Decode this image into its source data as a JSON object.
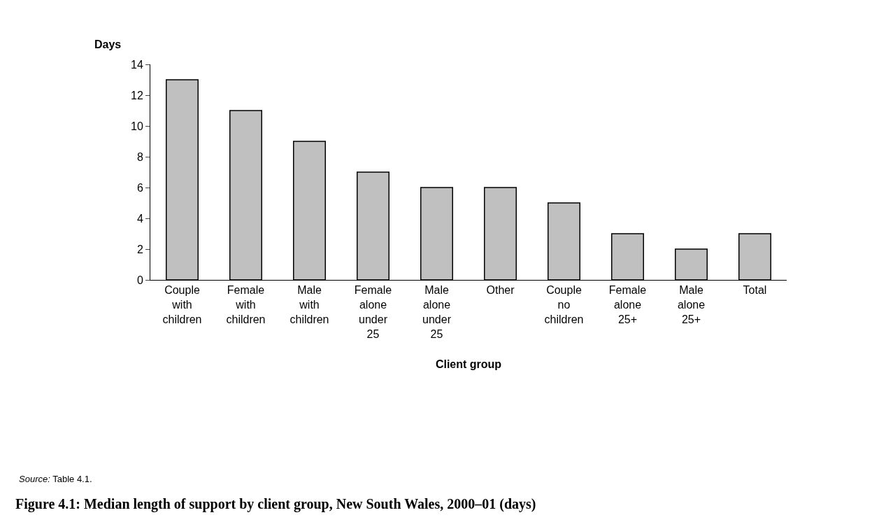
{
  "chart_data": {
    "type": "bar",
    "title": "Figure 4.1: Median length of support by client group, New South Wales, 2000–01 (days)",
    "xlabel": "Client group",
    "ylabel": "Days",
    "categories": [
      "Couple with children",
      "Female with children",
      "Male with children",
      "Female alone under 25",
      "Male alone under 25",
      "Other",
      "Couple no children",
      "Female alone 25+",
      "Male alone 25+",
      "Total"
    ],
    "values": [
      13,
      11,
      9,
      7,
      6,
      6,
      5,
      3,
      2,
      3
    ],
    "color": "#c0c0c0",
    "ylim": [
      0,
      14
    ],
    "yticks": [
      0,
      2,
      4,
      6,
      8,
      10,
      12,
      14
    ],
    "annotations": [
      "Source: Table 4.1."
    ]
  }
}
